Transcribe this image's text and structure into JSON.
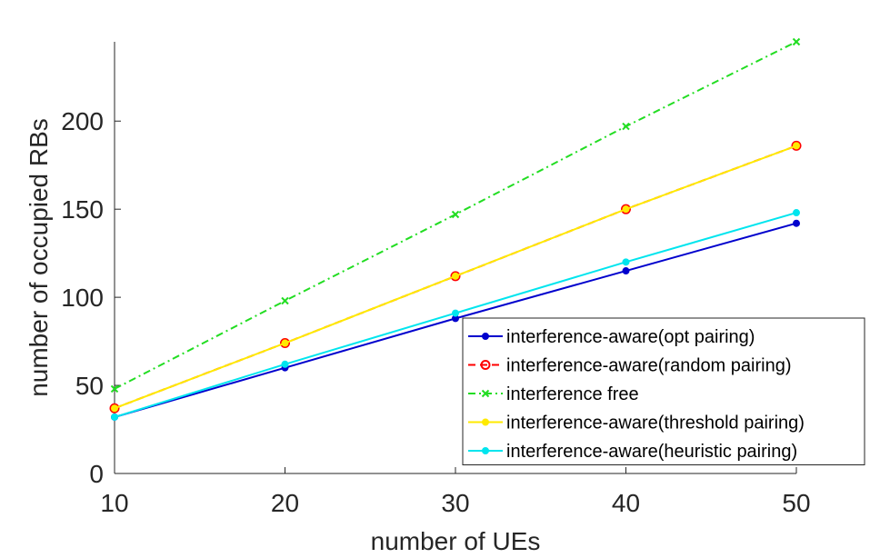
{
  "chart_data": {
    "type": "line",
    "xlabel": "number of UEs",
    "ylabel": "number of occupied RBs",
    "x": [
      10,
      20,
      30,
      40,
      50
    ],
    "xlim": [
      10,
      50
    ],
    "ylim": [
      0,
      245
    ],
    "xticks": [
      10,
      20,
      30,
      40,
      50
    ],
    "yticks": [
      0,
      50,
      100,
      150,
      200
    ],
    "grid": false,
    "legend_position": "bottom-right",
    "series": [
      {
        "name": "interference-aware(opt pairing)",
        "values": [
          32,
          60,
          88,
          115,
          142
        ],
        "color": "#0000cd",
        "dash": "solid",
        "marker": "dot"
      },
      {
        "name": "interference-aware(random pairing)",
        "values": [
          37,
          74,
          112,
          150,
          186
        ],
        "color": "#ff0000",
        "dash": "dashed",
        "marker": "circle"
      },
      {
        "name": "interference free",
        "values": [
          48,
          98,
          147,
          197,
          245
        ],
        "color": "#22dd22",
        "dash": "dashdot",
        "marker": "x"
      },
      {
        "name": "interference-aware(threshold pairing)",
        "values": [
          37,
          74,
          112,
          150,
          186
        ],
        "color": "#ffea00",
        "dash": "solid",
        "marker": "dot"
      },
      {
        "name": "interference-aware(heuristic pairing)",
        "values": [
          32,
          62,
          91,
          120,
          148
        ],
        "color": "#00e5ee",
        "dash": "solid",
        "marker": "dot"
      }
    ]
  }
}
